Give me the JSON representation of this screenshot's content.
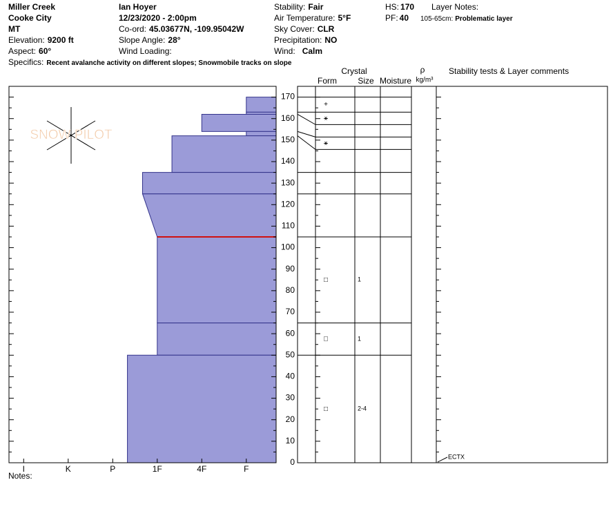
{
  "header": {
    "site": "Miller Creek",
    "area": "Cooke City",
    "state": "MT",
    "elevation": {
      "label": "Elevation:",
      "value": "9200 ft"
    },
    "aspect": {
      "label": "Aspect:",
      "value": "60°"
    },
    "observer": "Ian Hoyer",
    "datetime": "12/23/2020 - 2:00pm",
    "coord": {
      "label": "Co-ord:",
      "value": "45.03677N, -109.95042W"
    },
    "slope": {
      "label": "Slope Angle:",
      "value": "28°"
    },
    "wind_loading": {
      "label": "Wind Loading:"
    },
    "stability": {
      "label": "Stability:",
      "value": "Fair"
    },
    "air_temp": {
      "label": "Air Temperature:",
      "value": "5°F"
    },
    "sky": {
      "label": "Sky Cover:",
      "value": "CLR"
    },
    "precip": {
      "label": "Precipitation:",
      "value": "NO"
    },
    "wind": {
      "label": "Wind:",
      "value": "Calm"
    },
    "hs": {
      "label": "HS:",
      "value": "170"
    },
    "pf": {
      "label": "PF:",
      "value": "40"
    },
    "layer_notes": {
      "label": "Layer Notes:",
      "range": "105-65cm:",
      "text": "Problematic layer"
    },
    "specifics": {
      "label": "Specifics:",
      "value": "Recent avalanche activity on different slopes; Snowmobile tracks on slope"
    }
  },
  "notes_label": "Notes:",
  "chart_data": {
    "type": "snow-profile",
    "logo": "SNOW PILOT",
    "columns": {
      "crystal": "Crystal",
      "form": "Form",
      "size": "Size",
      "moisture": "Moisture",
      "rho": "ρ",
      "density_unit": "kg/m³",
      "comments": "Stability tests & Layer comments"
    },
    "ylim": [
      0,
      175
    ],
    "yticks": [
      0,
      10,
      20,
      30,
      40,
      50,
      60,
      70,
      80,
      90,
      100,
      110,
      120,
      130,
      140,
      150,
      160,
      170
    ],
    "yminorticks": [
      5,
      15,
      25,
      35,
      45,
      55,
      65,
      75,
      85,
      95,
      105,
      115,
      125,
      135,
      145,
      155,
      165
    ],
    "xlim": [
      -0.33,
      5.67
    ],
    "xticks": [
      {
        "value": 0,
        "label": "I"
      },
      {
        "value": 1,
        "label": "K"
      },
      {
        "value": 2,
        "label": "P"
      },
      {
        "value": 3,
        "label": "1F"
      },
      {
        "value": 4,
        "label": "4F"
      },
      {
        "value": 5,
        "label": "F"
      }
    ],
    "color": "#9b9bd8",
    "edge_color": "#33338a",
    "flagged_depth": 105,
    "flag_color": "#d01010",
    "layers": [
      {
        "top": 170,
        "bottom": 163,
        "hardness_top": 5,
        "hardness_bottom": 5,
        "form": "+"
      },
      {
        "top": 163,
        "bottom": 162,
        "hardness_top": 5,
        "hardness_bottom": 5,
        "form": "⚹"
      },
      {
        "top": 162,
        "bottom": 154,
        "hardness_top": 4,
        "hardness_bottom": 4
      },
      {
        "top": 154,
        "bottom": 152,
        "hardness_top": 5,
        "hardness_bottom": 5,
        "form": "⚹"
      },
      {
        "top": 152,
        "bottom": 135,
        "hardness_top": 3.33,
        "hardness_bottom": 3.33
      },
      {
        "top": 135,
        "bottom": 125,
        "hardness_top": 2.67,
        "hardness_bottom": 2.67
      },
      {
        "top": 125,
        "bottom": 105,
        "hardness_top": 2.67,
        "hardness_bottom": 3
      },
      {
        "top": 105,
        "bottom": 65,
        "hardness_top": 3,
        "hardness_bottom": 3,
        "form": "□",
        "size": "1"
      },
      {
        "top": 65,
        "bottom": 50,
        "hardness_top": 3,
        "hardness_bottom": 3,
        "form": "□",
        "size": "1"
      },
      {
        "top": 50,
        "bottom": 0,
        "hardness_top": 2.33,
        "hardness_bottom": 2.33,
        "form": "□",
        "size": "2-4"
      }
    ],
    "tests": [
      {
        "depth": 0,
        "label": "ECTX"
      }
    ]
  }
}
